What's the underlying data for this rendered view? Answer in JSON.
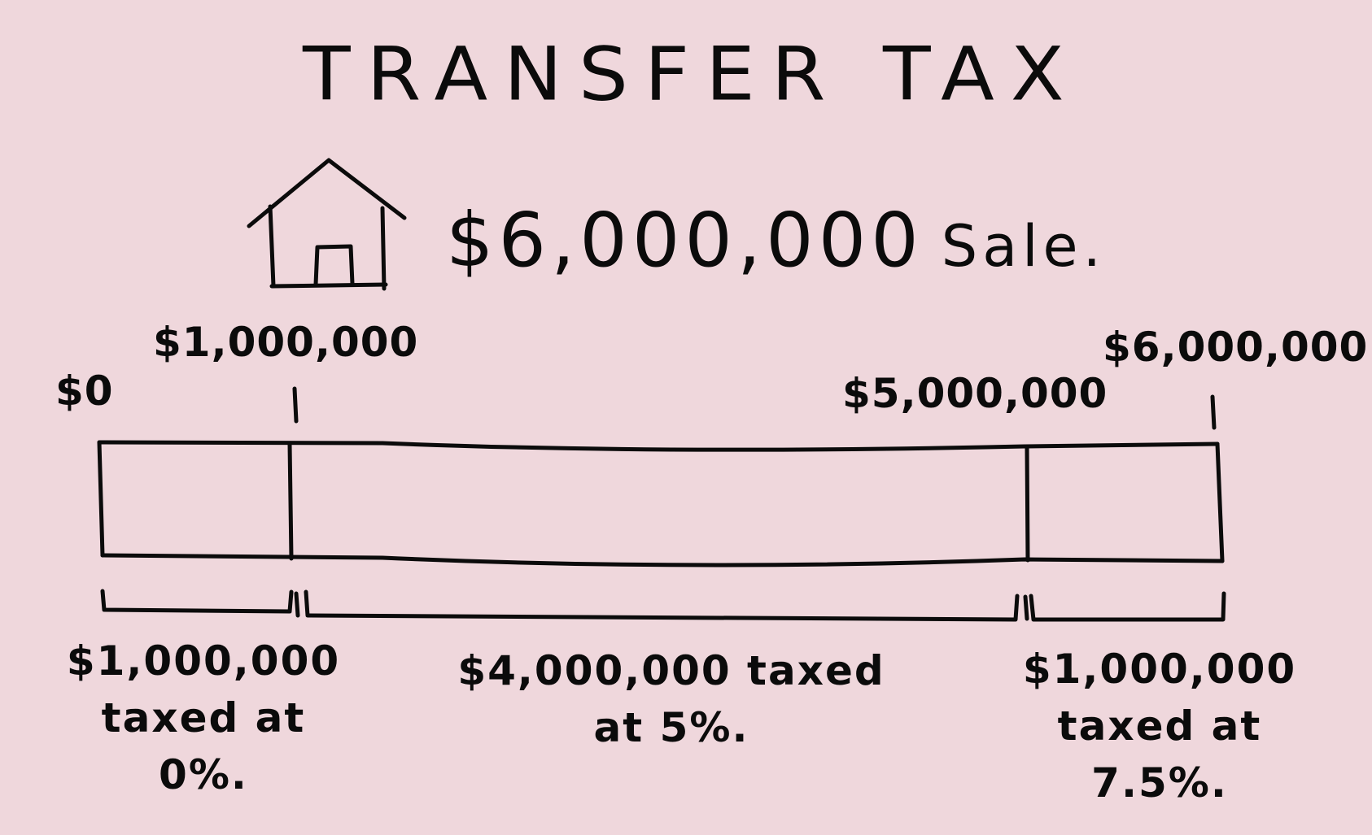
{
  "title": "TRANSFER TAX",
  "sale": {
    "amount": "$6,000,000",
    "word": "Sale."
  },
  "ticks": [
    "$0",
    "$1,000,000",
    "$5,000,000",
    "$6,000,000"
  ],
  "segments": [
    {
      "line1": "$1,000,000",
      "line2": "taxed at",
      "line3": "0%."
    },
    {
      "line1": "$4,000,000 taxed",
      "line2": "at 5%."
    },
    {
      "line1": "$1,000,000",
      "line2": "taxed at",
      "line3": "7.5%."
    }
  ],
  "colors": {
    "background": "#efd7dc",
    "ink": "#0b0b0b"
  },
  "icons": [
    "house-icon"
  ]
}
